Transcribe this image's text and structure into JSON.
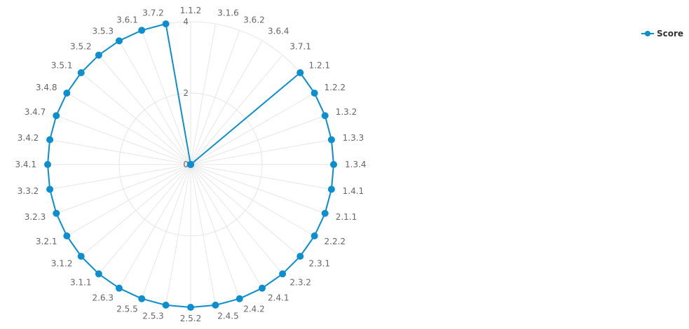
{
  "chart_data": {
    "type": "radar",
    "title": "",
    "categories": [
      "1.1.2",
      "3.1.6",
      "3.6.2",
      "3.6.4",
      "3.7.1",
      "1.2.1",
      "1.2.2",
      "1.3.2",
      "1.3.3",
      "1.3.4",
      "1.4.1",
      "2.1.1",
      "2.2.2",
      "2.3.1",
      "2.3.2",
      "2.4.1",
      "2.4.2",
      "2.4.5",
      "2.5.2",
      "2.5.3",
      "2.5.5",
      "2.6.3",
      "3.1.1",
      "3.1.2",
      "3.2.1",
      "3.2.3",
      "3.3.2",
      "3.4.1",
      "3.4.2",
      "3.4.7",
      "3.4.8",
      "3.5.1",
      "3.5.2",
      "3.5.3",
      "3.6.1",
      "3.7.2"
    ],
    "series": [
      {
        "name": "Score",
        "color": "#0d8ecf",
        "values": [
          0,
          0,
          0,
          0,
          0,
          4,
          4,
          4,
          4,
          4,
          4,
          4,
          4,
          4,
          4,
          4,
          4,
          4,
          4,
          4,
          4,
          4,
          4,
          4,
          4,
          4,
          4,
          4,
          4,
          4,
          4,
          4,
          4,
          4,
          4,
          4
        ]
      }
    ],
    "radial_ticks": [
      "0",
      "2",
      "4"
    ],
    "rmax": 4,
    "grid": true,
    "legend": {
      "position": "top-right"
    }
  }
}
